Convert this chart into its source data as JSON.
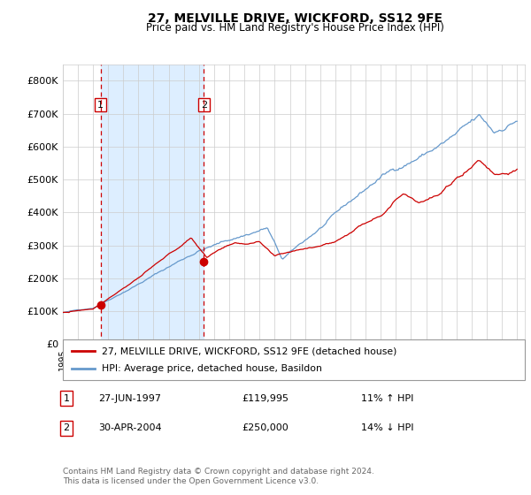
{
  "title": "27, MELVILLE DRIVE, WICKFORD, SS12 9FE",
  "subtitle": "Price paid vs. HM Land Registry's House Price Index (HPI)",
  "legend_entry1": "27, MELVILLE DRIVE, WICKFORD, SS12 9FE (detached house)",
  "legend_entry2": "HPI: Average price, detached house, Basildon",
  "annotation1_date": "27-JUN-1997",
  "annotation1_price": "£119,995",
  "annotation1_hpi": "11% ↑ HPI",
  "annotation1_year": 1997.5,
  "annotation1_value": 119995,
  "annotation2_date": "30-APR-2004",
  "annotation2_price": "£250,000",
  "annotation2_hpi": "14% ↓ HPI",
  "annotation2_year": 2004.33,
  "annotation2_value": 250000,
  "footer": "Contains HM Land Registry data © Crown copyright and database right 2024.\nThis data is licensed under the Open Government Licence v3.0.",
  "red_color": "#cc0000",
  "blue_color": "#6699cc",
  "shade_color": "#ddeeff",
  "grid_color": "#cccccc",
  "bg_color": "#ffffff",
  "ylim": [
    0,
    850000
  ],
  "xlim_start": 1995.0,
  "xlim_end": 2025.5,
  "yticks": [
    0,
    100000,
    200000,
    300000,
    400000,
    500000,
    600000,
    700000,
    800000
  ],
  "ytick_labels": [
    "£0",
    "£100K",
    "£200K",
    "£300K",
    "£400K",
    "£500K",
    "£600K",
    "£700K",
    "£800K"
  ]
}
